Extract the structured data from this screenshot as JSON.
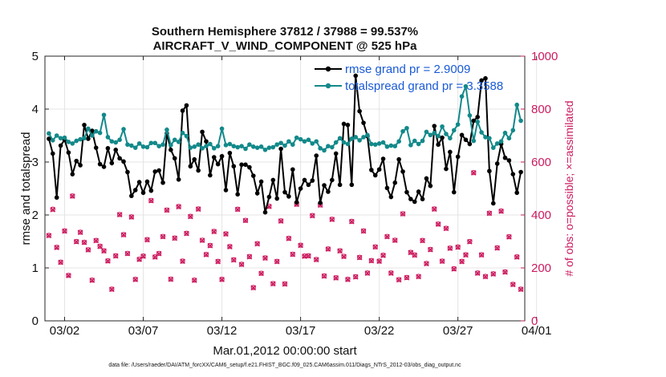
{
  "chart_data": {
    "type": "line",
    "title": "Southern Hemisphere 37812 / 37988 = 99.537%",
    "subtitle": "AIRCRAFT_V_WIND_COMPONENT @ 525 hPa",
    "xlabel": "Mar.01,2012 00:00:00 start",
    "ylabel": "rmse and totalspread",
    "y2label": "# of obs: o=possible; ×=assimilated",
    "footnote": "data file: /Users/raeder/DAI/ATM_forcXX/CAM6_setup/f.e21.FHIST_BGC.f09_025.CAM6assim.011/Diags_NTrS_2012-03/obs_diag_output.nc",
    "xlim": [
      0.75,
      31.25
    ],
    "ylim": [
      0,
      5
    ],
    "y2lim": [
      0,
      1000
    ],
    "xticks": [
      2,
      7,
      12,
      17,
      22,
      27,
      32
    ],
    "xtick_labels": [
      "03/02",
      "03/07",
      "03/12",
      "03/17",
      "03/22",
      "03/27",
      "04/01"
    ],
    "yticks": [
      0,
      1,
      2,
      3,
      4,
      5
    ],
    "ytick_labels": [
      "0",
      "1",
      "2",
      "3",
      "4",
      "5"
    ],
    "y2ticks": [
      0,
      200,
      400,
      600,
      800,
      1000
    ],
    "y2tick_labels": [
      "0",
      "200",
      "400",
      "600",
      "800",
      "1000"
    ],
    "grid": true,
    "legend_position": "top-right",
    "x": [
      1.0,
      1.25,
      1.5,
      1.75,
      2.0,
      2.25,
      2.5,
      2.75,
      3.0,
      3.25,
      3.5,
      3.75,
      4.0,
      4.25,
      4.5,
      4.75,
      5.0,
      5.25,
      5.5,
      5.75,
      6.0,
      6.25,
      6.5,
      6.75,
      7.0,
      7.25,
      7.5,
      7.75,
      8.0,
      8.25,
      8.5,
      8.75,
      9.0,
      9.25,
      9.5,
      9.75,
      10.0,
      10.25,
      10.5,
      10.75,
      11.0,
      11.25,
      11.5,
      11.75,
      12.0,
      12.25,
      12.5,
      12.75,
      13.0,
      13.25,
      13.5,
      13.75,
      14.0,
      14.25,
      14.5,
      14.75,
      15.0,
      15.25,
      15.5,
      15.75,
      16.0,
      16.25,
      16.5,
      16.75,
      17.0,
      17.25,
      17.5,
      17.75,
      18.0,
      18.25,
      18.5,
      18.75,
      19.0,
      19.25,
      19.5,
      19.75,
      20.0,
      20.25,
      20.5,
      20.75,
      21.0,
      21.25,
      21.5,
      21.75,
      22.0,
      22.25,
      22.5,
      22.75,
      23.0,
      23.25,
      23.5,
      23.75,
      24.0,
      24.25,
      24.5,
      24.75,
      25.0,
      25.25,
      25.5,
      25.75,
      26.0,
      26.25,
      26.5,
      26.75,
      27.0,
      27.25,
      27.5,
      27.75,
      28.0,
      28.25,
      28.5,
      28.75,
      29.0,
      29.25,
      29.5,
      29.75,
      30.0,
      30.25,
      30.5,
      30.75,
      31.0
    ],
    "series": [
      {
        "name": "rmse grand pr = 2.9009",
        "color": "#000000",
        "axis": "left",
        "values": [
          3.44,
          3.16,
          2.33,
          3.31,
          3.42,
          3.18,
          2.77,
          3.02,
          2.94,
          3.7,
          3.44,
          3.59,
          3.27,
          2.96,
          2.91,
          3.26,
          2.98,
          3.23,
          3.07,
          3.01,
          2.81,
          2.36,
          2.47,
          2.62,
          2.42,
          2.63,
          2.46,
          2.82,
          2.84,
          2.61,
          3.54,
          3.23,
          3.07,
          2.67,
          3.97,
          4.07,
          2.92,
          3.05,
          2.84,
          3.57,
          3.39,
          2.75,
          3.09,
          2.96,
          3.11,
          2.47,
          3.17,
          2.92,
          2.39,
          2.95,
          2.95,
          2.9,
          2.74,
          2.41,
          2.63,
          2.05,
          2.34,
          2.66,
          2.31,
          3.25,
          2.43,
          2.35,
          2.86,
          2.24,
          2.5,
          2.66,
          2.57,
          2.65,
          3.12,
          2.23,
          2.56,
          2.44,
          2.66,
          3.16,
          2.57,
          3.72,
          3.7,
          2.57,
          4.63,
          3.96,
          3.74,
          3.49,
          2.85,
          2.75,
          2.86,
          3.06,
          2.51,
          2.34,
          2.61,
          3.05,
          2.82,
          2.43,
          2.3,
          2.25,
          2.44,
          2.3,
          2.69,
          2.55,
          3.68,
          3.33,
          3.46,
          2.87,
          3.19,
          2.43,
          3.1,
          3.51,
          3.42,
          3.34,
          3.78,
          3.85,
          4.54,
          4.58,
          2.83,
          2.22,
          2.97,
          3.34,
          3.08,
          3.03,
          2.77,
          2.42,
          2.81
        ]
      },
      {
        "name": "totalspread grand pr = 3.3588",
        "color": "#13898a",
        "axis": "left",
        "values": [
          3.54,
          3.41,
          3.5,
          3.45,
          3.46,
          3.38,
          3.35,
          3.4,
          3.43,
          3.45,
          3.63,
          3.5,
          3.58,
          3.55,
          3.89,
          3.47,
          3.39,
          3.37,
          3.42,
          3.62,
          3.33,
          3.31,
          3.27,
          3.35,
          3.29,
          3.28,
          3.36,
          3.36,
          3.3,
          3.33,
          3.61,
          3.32,
          3.42,
          3.38,
          3.55,
          3.49,
          3.27,
          3.29,
          3.33,
          3.26,
          3.3,
          3.34,
          3.26,
          3.3,
          3.63,
          3.32,
          3.34,
          3.3,
          3.28,
          3.3,
          3.25,
          3.33,
          3.29,
          3.27,
          3.29,
          3.23,
          3.27,
          3.28,
          3.33,
          3.36,
          3.31,
          3.39,
          3.33,
          3.46,
          3.43,
          3.39,
          3.42,
          3.35,
          3.39,
          3.26,
          3.22,
          3.3,
          3.28,
          3.37,
          3.45,
          3.37,
          3.34,
          3.44,
          3.47,
          3.41,
          3.47,
          3.51,
          3.34,
          3.33,
          3.35,
          3.37,
          3.29,
          3.31,
          3.3,
          3.39,
          3.58,
          3.64,
          3.32,
          3.4,
          3.34,
          3.4,
          3.57,
          3.51,
          3.55,
          3.49,
          3.67,
          3.53,
          3.45,
          3.6,
          3.71,
          4.24,
          4.43,
          3.88,
          3.4,
          3.76,
          3.56,
          3.47,
          3.45,
          3.27,
          3.35,
          3.39,
          3.55,
          3.45,
          3.6,
          4.08,
          3.78
        ]
      }
    ],
    "obs_possible": [
      323,
      422,
      278,
      222,
      340,
      172,
      472,
      300,
      335,
      297,
      269,
      154,
      304,
      282,
      265,
      227,
      120,
      246,
      402,
      326,
      255,
      393,
      157,
      233,
      245,
      307,
      455,
      242,
      255,
      319,
      419,
      158,
      313,
      432,
      226,
      331,
      395,
      154,
      423,
      305,
      251,
      285,
      338,
      225,
      157,
      329,
      281,
      231,
      422,
      214,
      380,
      243,
      126,
      292,
      180,
      238,
      433,
      141,
      225,
      378,
      140,
      312,
      252,
      441,
      286,
      245,
      246,
      398,
      232,
      438,
      170,
      272,
      384,
      163,
      265,
      244,
      157,
      376,
      167,
      240,
      340,
      181,
      228,
      280,
      226,
      248,
      319,
      181,
      305,
      156,
      405,
      164,
      259,
      249,
      168,
      304,
      217,
      270,
      423,
      366,
      226,
      350,
      275,
      197,
      279,
      225,
      250,
      300,
      560,
      181,
      250,
      168,
      407,
      178,
      276,
      415,
      185,
      318,
      138,
      242,
      120
    ],
    "obs_assimilated": [
      322,
      420,
      277,
      221,
      339,
      171,
      471,
      299,
      334,
      296,
      268,
      153,
      303,
      281,
      264,
      226,
      119,
      245,
      401,
      325,
      254,
      392,
      156,
      232,
      244,
      306,
      454,
      241,
      254,
      318,
      418,
      157,
      312,
      431,
      225,
      330,
      394,
      153,
      422,
      304,
      250,
      284,
      337,
      224,
      156,
      328,
      280,
      230,
      421,
      213,
      379,
      242,
      125,
      291,
      179,
      237,
      432,
      140,
      224,
      377,
      139,
      311,
      251,
      440,
      285,
      244,
      245,
      397,
      231,
      437,
      169,
      271,
      383,
      162,
      264,
      243,
      156,
      375,
      166,
      239,
      339,
      180,
      227,
      279,
      225,
      247,
      318,
      180,
      304,
      155,
      404,
      163,
      258,
      248,
      167,
      303,
      216,
      269,
      422,
      365,
      225,
      349,
      274,
      196,
      278,
      224,
      249,
      299,
      559,
      180,
      249,
      167,
      406,
      177,
      275,
      414,
      184,
      317,
      137,
      241,
      119
    ]
  },
  "marker_color": "#cc1a5e"
}
